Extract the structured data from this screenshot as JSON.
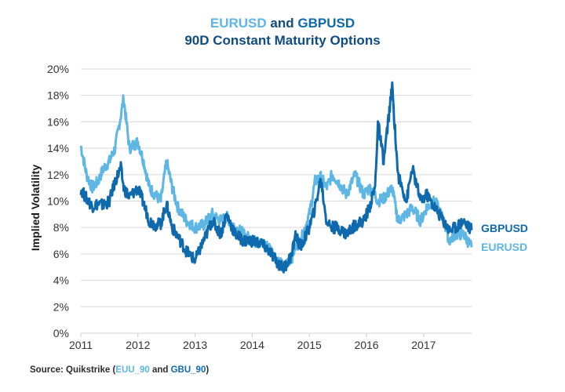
{
  "title": {
    "line1_part1": "EURUSD",
    "line1_part2": " and ",
    "line1_part3": "GBPUSD",
    "line2": "90D Constant Maturity Options"
  },
  "source": {
    "prefix": "Source: Quikstrike (",
    "code1": "EUU_90",
    "mid": " and ",
    "code2": "GBU_90",
    "suffix": ")"
  },
  "colors": {
    "eurusd": "#5eb6e4",
    "gbpusd": "#0e6aad",
    "grid": "#dddddd"
  },
  "chart_data": {
    "type": "line",
    "title": "EURUSD and GBPUSD 90D Constant Maturity Options",
    "xlabel": "",
    "ylabel": "Implied Volatility",
    "xlim": [
      2011,
      2017.84
    ],
    "ylim": [
      0,
      20
    ],
    "grid": true,
    "x_ticks": [
      "2011",
      "2012",
      "2013",
      "2014",
      "2015",
      "2016",
      "2017"
    ],
    "x_tick_values": [
      2011,
      2012,
      2013,
      2014,
      2015,
      2016,
      2017
    ],
    "y_ticks": [
      "0%",
      "2%",
      "4%",
      "6%",
      "8%",
      "10%",
      "12%",
      "14%",
      "16%",
      "18%",
      "20%"
    ],
    "y_tick_values": [
      0,
      2,
      4,
      6,
      8,
      10,
      12,
      14,
      16,
      18,
      20
    ],
    "legend_placement": "right (end of lines)",
    "x": [
      2011.0,
      2011.1,
      2011.2,
      2011.3,
      2011.4,
      2011.5,
      2011.6,
      2011.7,
      2011.75,
      2011.85,
      2012.0,
      2012.1,
      2012.2,
      2012.3,
      2012.4,
      2012.5,
      2012.6,
      2012.7,
      2012.85,
      2013.0,
      2013.15,
      2013.3,
      2013.45,
      2013.55,
      2013.7,
      2013.85,
      2014.0,
      2014.15,
      2014.3,
      2014.45,
      2014.55,
      2014.7,
      2014.75,
      2014.85,
      2015.0,
      2015.1,
      2015.2,
      2015.3,
      2015.4,
      2015.5,
      2015.65,
      2015.8,
      2015.95,
      2016.05,
      2016.15,
      2016.2,
      2016.3,
      2016.45,
      2016.55,
      2016.7,
      2016.8,
      2016.95,
      2017.05,
      2017.2,
      2017.35,
      2017.45,
      2017.55,
      2017.7,
      2017.84
    ],
    "series": [
      {
        "name": "EURUSD",
        "values": [
          14.2,
          12.0,
          11.0,
          11.5,
          12.5,
          13.0,
          14.0,
          16.5,
          17.8,
          14.0,
          14.5,
          13.0,
          11.0,
          10.5,
          10.0,
          13.0,
          11.0,
          9.5,
          8.5,
          8.0,
          8.2,
          9.0,
          8.5,
          8.8,
          8.0,
          7.5,
          7.0,
          6.8,
          6.5,
          5.5,
          5.0,
          5.8,
          6.5,
          7.0,
          9.0,
          11.5,
          11.8,
          11.0,
          12.0,
          11.5,
          10.5,
          12.0,
          10.5,
          11.0,
          10.5,
          10.0,
          10.2,
          11.0,
          8.5,
          9.0,
          9.5,
          8.5,
          9.5,
          10.0,
          8.5,
          7.0,
          7.5,
          7.5,
          6.5
        ]
      },
      {
        "name": "GBPUSD",
        "values": [
          10.9,
          10.2,
          9.6,
          9.8,
          9.7,
          10.0,
          11.5,
          12.5,
          11.0,
          10.3,
          11.0,
          9.8,
          8.5,
          8.2,
          8.3,
          9.8,
          8.0,
          7.3,
          6.2,
          5.5,
          7.0,
          8.5,
          7.5,
          9.0,
          7.5,
          7.0,
          7.0,
          6.8,
          6.2,
          5.3,
          4.9,
          6.0,
          7.5,
          6.5,
          8.0,
          9.5,
          11.7,
          8.5,
          8.0,
          8.0,
          7.5,
          8.2,
          8.5,
          9.5,
          11.0,
          16.0,
          13.0,
          18.7,
          12.0,
          10.0,
          12.5,
          10.0,
          10.5,
          9.5,
          8.5,
          7.8,
          8.0,
          8.5,
          7.8
        ]
      }
    ]
  }
}
